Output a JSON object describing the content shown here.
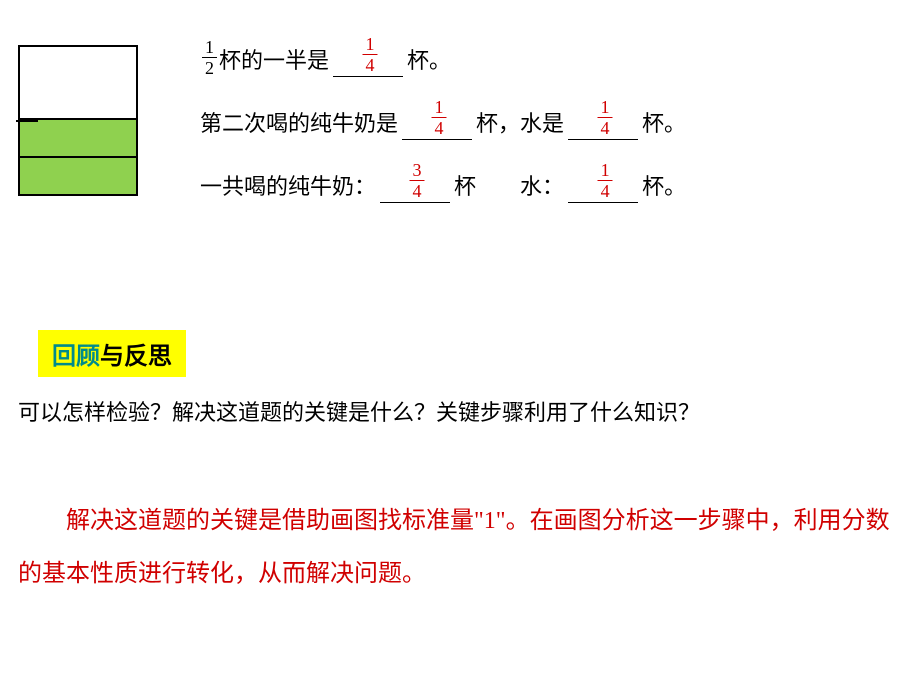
{
  "diagram": {
    "border_color": "#000000",
    "fill_top": "#ffffff",
    "fill_bottom": "#8fd14f",
    "rows": 3
  },
  "lines": {
    "l1": {
      "frac_lead": {
        "n": "1",
        "d": "2"
      },
      "t1": "杯的一半是",
      "ans1": {
        "n": "1",
        "d": "4"
      },
      "t2": "杯。"
    },
    "l2": {
      "t1": "第二次喝的纯牛奶是",
      "ans1": {
        "n": "1",
        "d": "4"
      },
      "t2": "杯，水是",
      "ans2": {
        "n": "1",
        "d": "4"
      },
      "t3": "杯。"
    },
    "l3": {
      "t1": "一共喝的纯牛奶：",
      "ans1": {
        "n": "3",
        "d": "4"
      },
      "t2": "杯",
      "spacer": "　　",
      "t3": "水：",
      "ans2": {
        "n": "1",
        "d": "4"
      },
      "t4": "杯。"
    }
  },
  "section": {
    "part1": "回顾",
    "part2": "与反思"
  },
  "question": "可以怎样检验？解决这道题的关键是什么？关键步骤利用了什么知识？",
  "answer": "解决这道题的关键是借助画图找标准量\"1\"。在画图分析这一步骤中，利用分数的基本性质进行转化，从而解决问题。",
  "colors": {
    "red": "#d00000",
    "highlight": "#ffff00",
    "teal": "#008b8b",
    "text": "#000000",
    "bg": "#ffffff"
  }
}
